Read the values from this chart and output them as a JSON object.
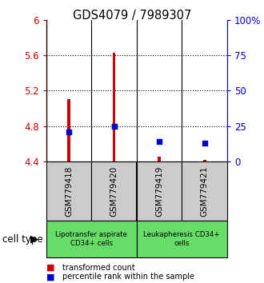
{
  "title": "GDS4079 / 7989307",
  "samples": [
    "GSM779418",
    "GSM779420",
    "GSM779419",
    "GSM779421"
  ],
  "red_values": [
    5.1,
    5.63,
    4.45,
    4.42
  ],
  "blue_values": [
    4.73,
    4.8,
    4.62,
    4.61
  ],
  "ylim": [
    4.4,
    6.0
  ],
  "yticks_left": [
    4.4,
    4.8,
    5.2,
    5.6,
    6.0
  ],
  "yticks_right": [
    0,
    25,
    50,
    75,
    100
  ],
  "ytick_labels_left": [
    "4.4",
    "4.8",
    "5.2",
    "5.6",
    "6"
  ],
  "ytick_labels_right": [
    "0",
    "25",
    "50",
    "75",
    "100%"
  ],
  "left_color": "#cc0000",
  "right_color": "#0000cc",
  "bar_color": "#cc0000",
  "square_color": "#0000cc",
  "group1_label": "Lipotransfer aspirate\nCD34+ cells",
  "group2_label": "Leukapheresis CD34+\ncells",
  "group_bg_color": "#66dd66",
  "sample_bg_color": "#cccccc",
  "legend_red": "transformed count",
  "legend_blue": "percentile rank within the sample",
  "cell_type_label": "cell type",
  "bar_width": 0.07,
  "square_size": 22
}
